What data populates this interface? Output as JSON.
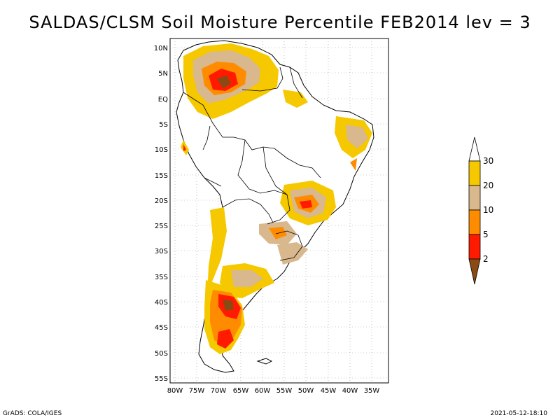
{
  "title": "SALDAS/CLSM Soil Moisture Percentile FEB2014 lev = 3",
  "lat_labels": [
    "10N",
    "5N",
    "EQ",
    "5S",
    "10S",
    "15S",
    "20S",
    "25S",
    "30S",
    "35S",
    "40S",
    "45S",
    "50S",
    "55S"
  ],
  "lon_labels": [
    "80W",
    "75W",
    "70W",
    "65W",
    "60W",
    "55W",
    "50W",
    "45W",
    "40W",
    "35W"
  ],
  "colorbar": {
    "labels": [
      "30",
      "20",
      "10",
      "5",
      "2"
    ],
    "colors": [
      "#ffffff",
      "#f5c800",
      "#d8b88c",
      "#ff8c00",
      "#ff1a00",
      "#8a4a14"
    ]
  },
  "footer": {
    "left": "GrADS: COLA/IGES",
    "right": "2021-05-12-18:10"
  }
}
